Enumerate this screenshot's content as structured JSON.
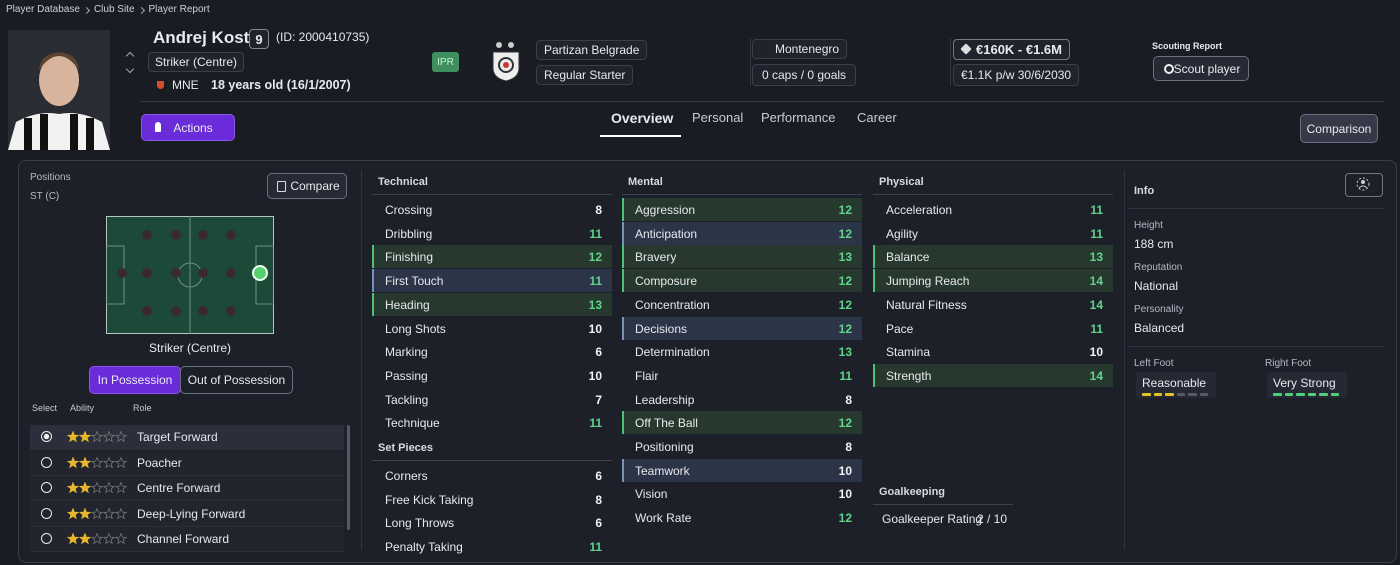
{
  "breadcrumb": [
    "Player Database",
    "Club Site",
    "Player Report"
  ],
  "player": {
    "name": "Andrej Kostić",
    "number": "9",
    "id": "(ID: 2000410735)",
    "position": "Striker (Centre)",
    "nationality": "MNE",
    "age": "18 years old (16/1/2007)",
    "badge": "IPR"
  },
  "club": {
    "name": "Partizan Belgrade",
    "role": "Regular Starter"
  },
  "nation": {
    "name": "Montenegro",
    "caps": "0 caps / 0 goals"
  },
  "contract": {
    "value": "€160K - €1.6M",
    "wage": "€1.1K p/w 30/6/2030"
  },
  "scouting": {
    "label": "Scouting Report",
    "button": "Scout player"
  },
  "actions": "Actions",
  "tabs": [
    "Overview",
    "Personal",
    "Performance",
    "Career"
  ],
  "comparison": "Comparison",
  "positions": {
    "label": "Positions",
    "value": "ST (C)",
    "compare": "Compare",
    "pitch_label": "Striker (Centre)",
    "modes": [
      "In Possession",
      "Out of Possession"
    ],
    "headers": [
      "Select",
      "Ability",
      "Role"
    ],
    "roles": [
      {
        "name": "Target Forward",
        "stars": 2
      },
      {
        "name": "Poacher",
        "stars": 2
      },
      {
        "name": "Centre Forward",
        "stars": 2
      },
      {
        "name": "Deep-Lying Forward",
        "stars": 2
      },
      {
        "name": "Channel Forward",
        "stars": 2
      }
    ]
  },
  "attributes": {
    "technical": {
      "title": "Technical",
      "rows": [
        {
          "name": "Crossing",
          "value": 8
        },
        {
          "name": "Dribbling",
          "value": 11
        },
        {
          "name": "Finishing",
          "value": 12,
          "highlight": "green"
        },
        {
          "name": "First Touch",
          "value": 11,
          "highlight": "blue"
        },
        {
          "name": "Heading",
          "value": 13,
          "highlight": "green"
        },
        {
          "name": "Long Shots",
          "value": 10
        },
        {
          "name": "Marking",
          "value": 6
        },
        {
          "name": "Passing",
          "value": 10
        },
        {
          "name": "Tackling",
          "value": 7
        },
        {
          "name": "Technique",
          "value": 11
        }
      ]
    },
    "set_pieces": {
      "title": "Set Pieces",
      "rows": [
        {
          "name": "Corners",
          "value": 6
        },
        {
          "name": "Free Kick Taking",
          "value": 8
        },
        {
          "name": "Long Throws",
          "value": 6
        },
        {
          "name": "Penalty Taking",
          "value": 11
        }
      ]
    },
    "mental": {
      "title": "Mental",
      "rows": [
        {
          "name": "Aggression",
          "value": 12,
          "highlight": "green"
        },
        {
          "name": "Anticipation",
          "value": 12,
          "highlight": "blue"
        },
        {
          "name": "Bravery",
          "value": 13,
          "highlight": "green"
        },
        {
          "name": "Composure",
          "value": 12,
          "highlight": "green"
        },
        {
          "name": "Concentration",
          "value": 12
        },
        {
          "name": "Decisions",
          "value": 12,
          "highlight": "blue"
        },
        {
          "name": "Determination",
          "value": 13
        },
        {
          "name": "Flair",
          "value": 11
        },
        {
          "name": "Leadership",
          "value": 8
        },
        {
          "name": "Off The Ball",
          "value": 12,
          "highlight": "green"
        },
        {
          "name": "Positioning",
          "value": 8
        },
        {
          "name": "Teamwork",
          "value": 10,
          "highlight": "blue"
        },
        {
          "name": "Vision",
          "value": 10
        },
        {
          "name": "Work Rate",
          "value": 12
        }
      ]
    },
    "physical": {
      "title": "Physical",
      "rows": [
        {
          "name": "Acceleration",
          "value": 11
        },
        {
          "name": "Agility",
          "value": 11
        },
        {
          "name": "Balance",
          "value": 13,
          "highlight": "green"
        },
        {
          "name": "Jumping Reach",
          "value": 14,
          "highlight": "green"
        },
        {
          "name": "Natural Fitness",
          "value": 14
        },
        {
          "name": "Pace",
          "value": 11
        },
        {
          "name": "Stamina",
          "value": 10
        },
        {
          "name": "Strength",
          "value": 14,
          "highlight": "green"
        }
      ]
    },
    "goalkeeping": {
      "title": "Goalkeeping",
      "label": "Goalkeeper Rating",
      "value": "2 / 10"
    }
  },
  "info": {
    "title": "Info",
    "items": [
      {
        "label": "Height",
        "value": "188 cm"
      },
      {
        "label": "Reputation",
        "value": "National"
      },
      {
        "label": "Personality",
        "value": "Balanced"
      }
    ],
    "feet": [
      {
        "label": "Left Foot",
        "value": "Reasonable",
        "level": 3,
        "segments": 6,
        "color": "#e6c229"
      },
      {
        "label": "Right Foot",
        "value": "Very Strong",
        "level": 6,
        "segments": 6,
        "color": "#4fd07a"
      }
    ]
  }
}
